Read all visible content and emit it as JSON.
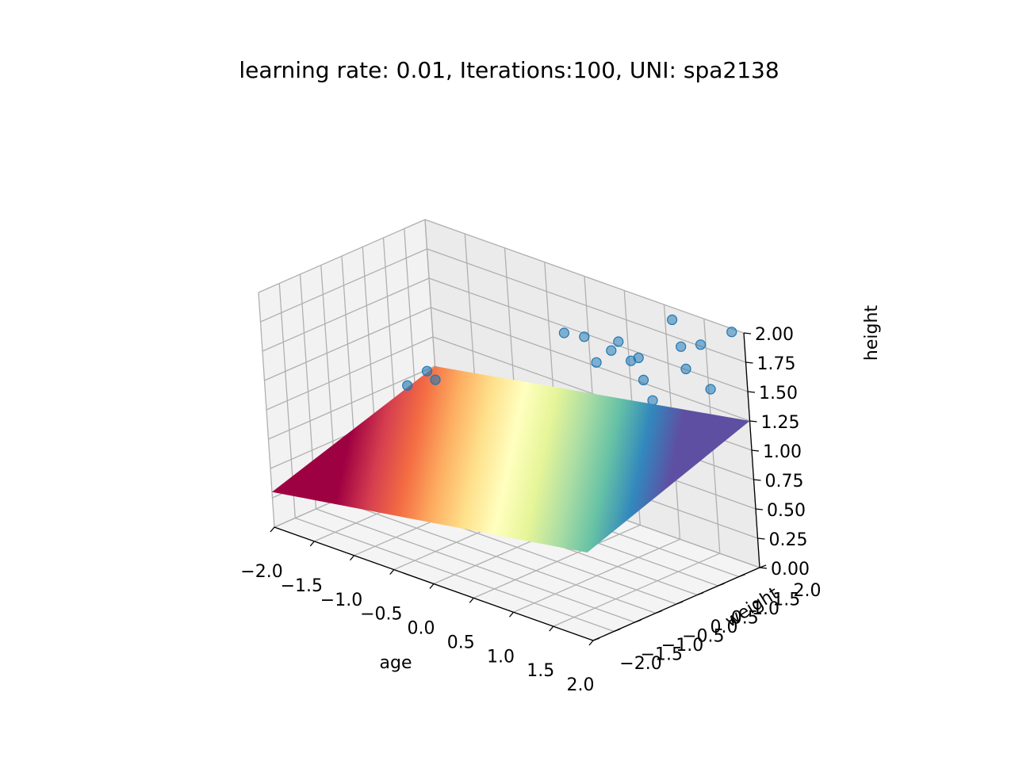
{
  "chart_data": {
    "type": "scatter",
    "projection": "3d",
    "title": "learning rate: 0.01, Iterations:100, UNI: spa2138",
    "xlabel": "age",
    "ylabel": "weight",
    "zlabel": "height",
    "xlim": [
      -2.0,
      2.0
    ],
    "ylim": [
      -2.0,
      2.0
    ],
    "zlim": [
      0.0,
      2.0
    ],
    "xticks": [
      "−2.0",
      "−1.5",
      "−1.0",
      "−0.5",
      "0.0",
      "0.5",
      "1.0",
      "1.5",
      "2.0"
    ],
    "yticks": [
      "−2.0",
      "−1.5",
      "−1.0",
      "−0.5",
      "0.0",
      "0.5",
      "1.0",
      "1.5",
      "2.0"
    ],
    "zticks": [
      "0.00",
      "0.25",
      "0.50",
      "0.75",
      "1.00",
      "1.25",
      "1.50",
      "1.75",
      "2.00"
    ],
    "grid": true,
    "colors": {
      "points": "#1f77b4",
      "pane_back": "#ebebeb",
      "pane_side": "#f2f2f2",
      "pane_floor": "#f4f4f4",
      "grid": "#b0b0b0",
      "surface_colormap": [
        "#9e0142",
        "#d53e4f",
        "#f46d43",
        "#fdae61",
        "#fee08b",
        "#ffffbf",
        "#e6f598",
        "#abdda4",
        "#66c2a5",
        "#3288bd",
        "#5e4fa2"
      ]
    },
    "surface": {
      "colormap": "Spectral",
      "corners": [
        {
          "x": -2.0,
          "y": -2.0,
          "z": 0.3
        },
        {
          "x": 2.0,
          "y": -2.0,
          "z": 0.75
        },
        {
          "x": 2.0,
          "y": 2.0,
          "z": 1.25
        },
        {
          "x": -2.0,
          "y": 2.0,
          "z": 0.75
        }
      ]
    },
    "points": [
      {
        "x": -1.6,
        "y": 0.6,
        "z": 0.9
      },
      {
        "x": -1.5,
        "y": 0.9,
        "z": 1.0
      },
      {
        "x": -1.4,
        "y": 0.9,
        "z": 0.95
      },
      {
        "x": -1.2,
        "y": 1.3,
        "z": 0.95
      },
      {
        "x": -1.3,
        "y": 1.1,
        "z": 0.9
      },
      {
        "x": -0.2,
        "y": 1.8,
        "z": 1.5
      },
      {
        "x": 0.0,
        "y": 1.9,
        "z": 1.5
      },
      {
        "x": 0.3,
        "y": 1.6,
        "z": 1.4
      },
      {
        "x": 0.5,
        "y": 1.6,
        "z": 1.55
      },
      {
        "x": 0.6,
        "y": 1.6,
        "z": 1.65
      },
      {
        "x": 0.8,
        "y": 1.5,
        "z": 1.55
      },
      {
        "x": 0.9,
        "y": 1.5,
        "z": 1.6
      },
      {
        "x": 1.0,
        "y": 1.4,
        "z": 1.45
      },
      {
        "x": 1.1,
        "y": 1.4,
        "z": 1.3
      },
      {
        "x": 1.4,
        "y": 1.6,
        "z": 1.8
      },
      {
        "x": 1.5,
        "y": 1.5,
        "z": 1.65
      },
      {
        "x": 1.6,
        "y": 1.7,
        "z": 1.85
      },
      {
        "x": 1.8,
        "y": 1.5,
        "z": 1.55
      },
      {
        "x": 1.9,
        "y": 1.9,
        "z": 2.0
      },
      {
        "x": 1.2,
        "y": 1.8,
        "z": 1.95
      }
    ]
  }
}
